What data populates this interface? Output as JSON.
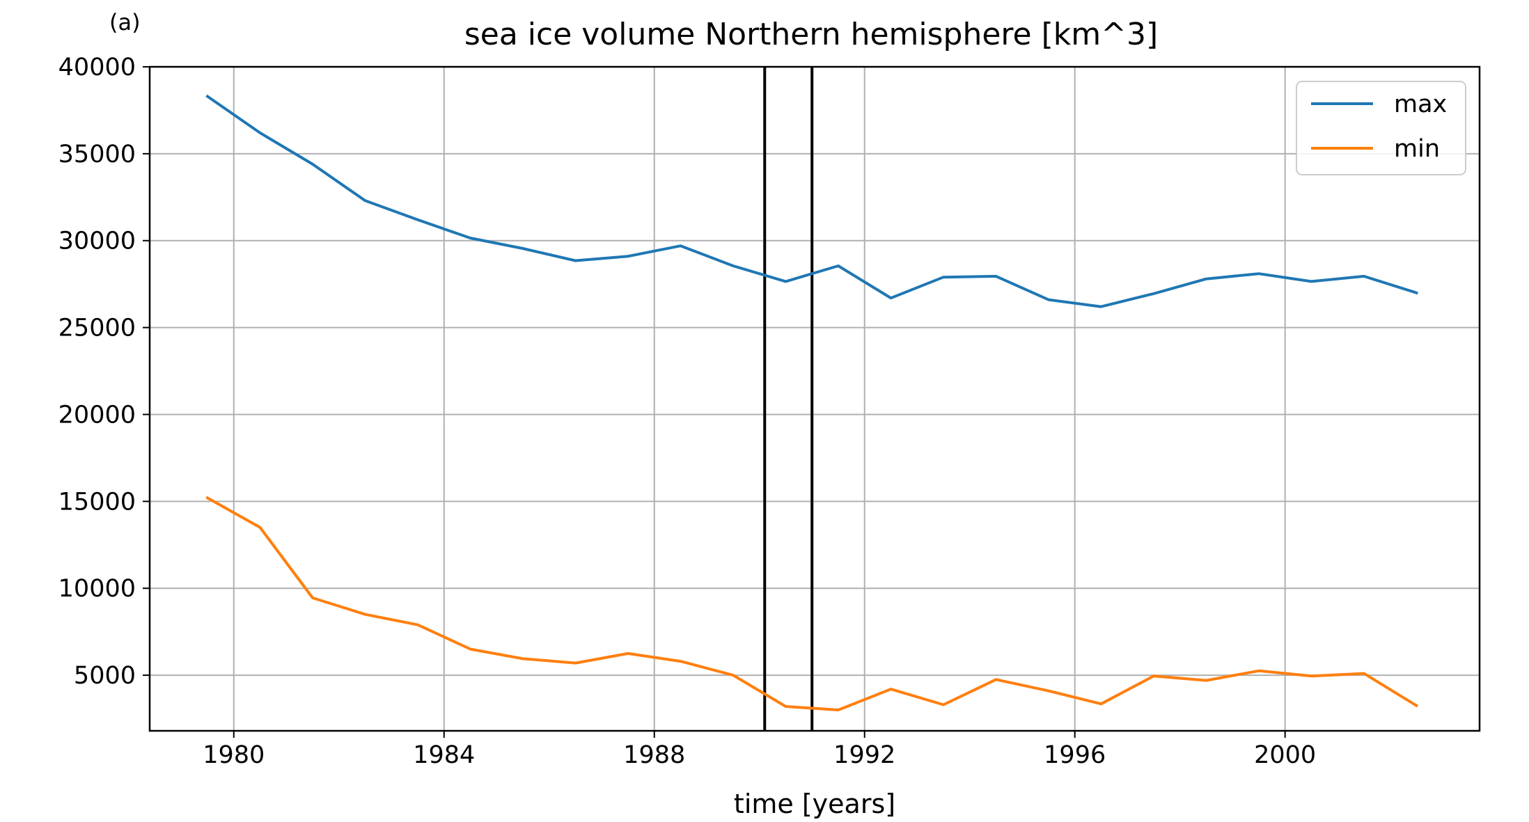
{
  "panel_label": "(a)",
  "chart_data": {
    "type": "line",
    "title": "sea ice volume Northern hemisphere [km^3]",
    "xlabel": "time [years]",
    "ylabel": "",
    "xlim": [
      1978.4,
      2003.7
    ],
    "ylim": [
      1800,
      40000
    ],
    "xticks": [
      1980,
      1984,
      1988,
      1992,
      1996,
      2000
    ],
    "yticks": [
      5000,
      10000,
      15000,
      20000,
      25000,
      30000,
      35000,
      40000
    ],
    "xtick_labels": [
      "1980",
      "1984",
      "1988",
      "1992",
      "1996",
      "2000"
    ],
    "ytick_labels": [
      "5000",
      "10000",
      "15000",
      "20000",
      "25000",
      "30000",
      "35000",
      "40000"
    ],
    "grid": true,
    "legend_position": "top-right",
    "vertical_lines": [
      1990.1,
      1991.0
    ],
    "vertical_line_color": "#000000",
    "x": [
      1979.5,
      1980.5,
      1981.5,
      1982.5,
      1983.5,
      1984.5,
      1985.5,
      1986.5,
      1987.5,
      1988.5,
      1989.5,
      1990.5,
      1991.5,
      1992.5,
      1993.5,
      1994.5,
      1995.5,
      1996.5,
      1997.5,
      1998.5,
      1999.5,
      2000.5,
      2001.5,
      2002.5
    ],
    "series": [
      {
        "name": "max",
        "color": "#1f77b4",
        "values": [
          38300,
          36200,
          34400,
          32300,
          31200,
          30150,
          29550,
          28850,
          29100,
          29700,
          28550,
          27650,
          28550,
          26700,
          27900,
          27950,
          26600,
          26200,
          26950,
          27800,
          28100,
          27650,
          27950,
          27000
        ]
      },
      {
        "name": "min",
        "color": "#ff7f0e",
        "values": [
          15200,
          13500,
          9450,
          8500,
          7900,
          6500,
          5950,
          5700,
          6250,
          5800,
          5000,
          3200,
          3000,
          4200,
          3300,
          4750,
          4100,
          3350,
          4950,
          4700,
          5250,
          4950,
          5100,
          3250
        ]
      }
    ]
  }
}
